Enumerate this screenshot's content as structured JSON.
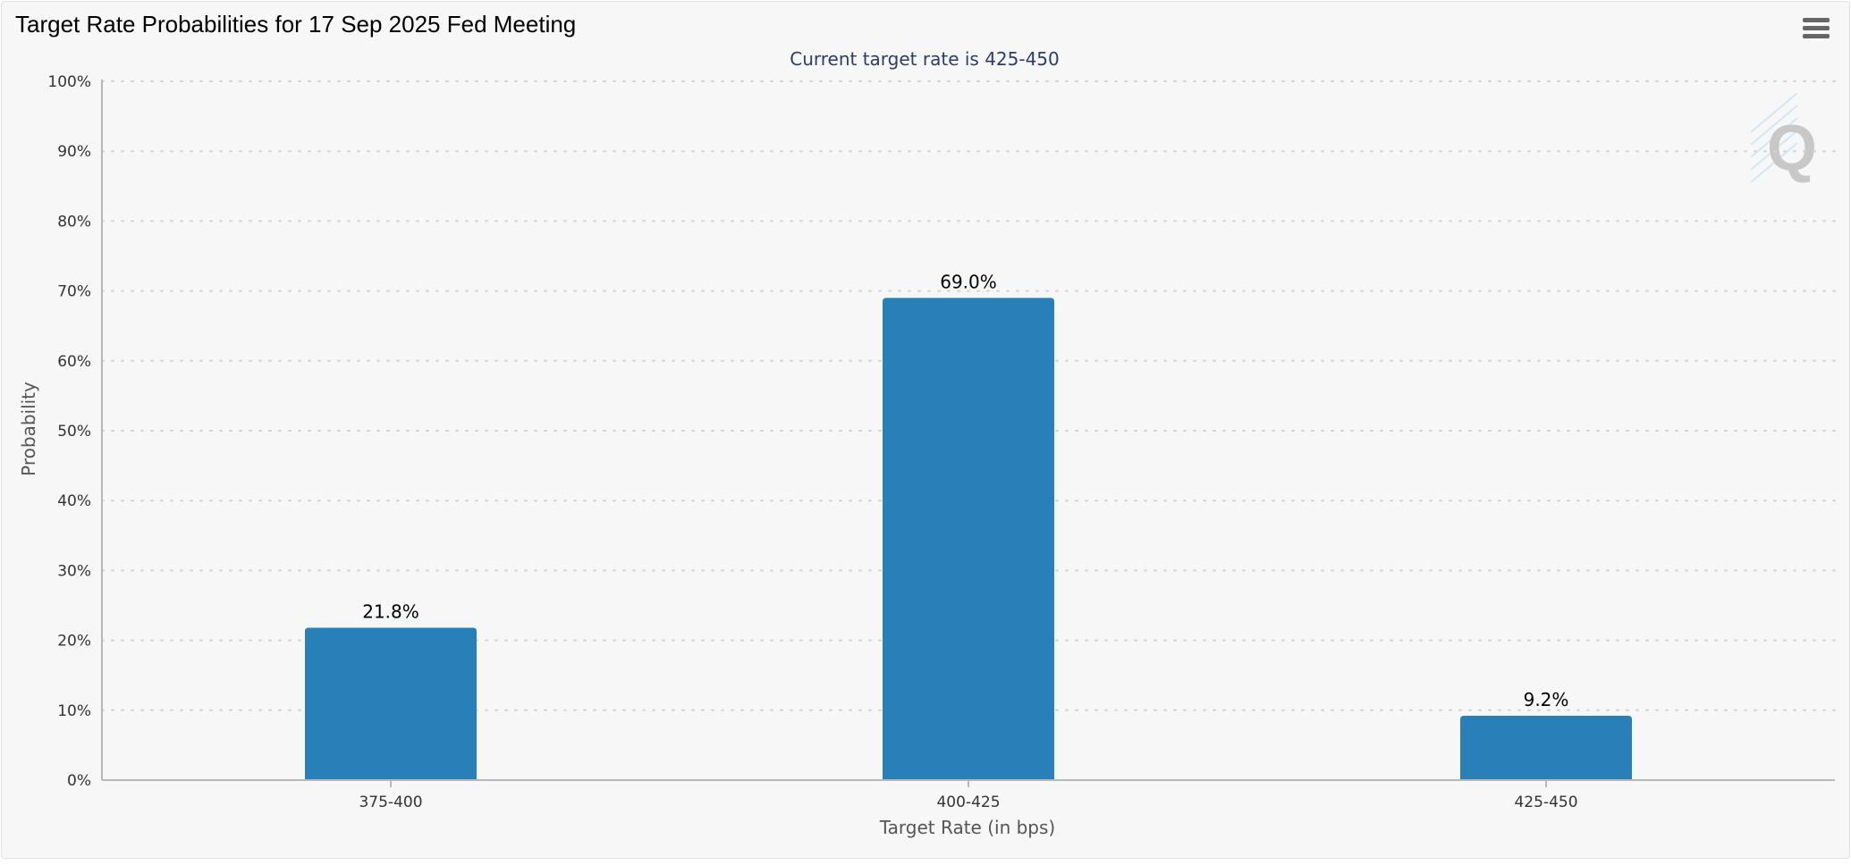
{
  "title": "Target Rate Probabilities for 17 Sep 2025 Fed Meeting",
  "subtitle": "Current target rate is 425-450",
  "menu_icon": "hamburger-menu-icon",
  "watermark": {
    "text": "Q",
    "icon": "quikstrike-logo-icon"
  },
  "colors": {
    "bar": "#2980b9",
    "title": "#000000",
    "subtitle": "#2b3d6b",
    "background": "#f7f7f7"
  },
  "chart_data": {
    "type": "bar",
    "categories": [
      "375-400",
      "400-425",
      "425-450"
    ],
    "values": [
      21.8,
      69.0,
      9.2
    ],
    "value_labels": [
      "21.8%",
      "69.0%",
      "9.2%"
    ],
    "xlabel": "Target Rate (in bps)",
    "ylabel": "Probability",
    "ylim": [
      0,
      100
    ],
    "yticks": [
      "0%",
      "10%",
      "20%",
      "30%",
      "40%",
      "50%",
      "60%",
      "70%",
      "80%",
      "90%",
      "100%"
    ],
    "grid": true,
    "legend": "none"
  }
}
